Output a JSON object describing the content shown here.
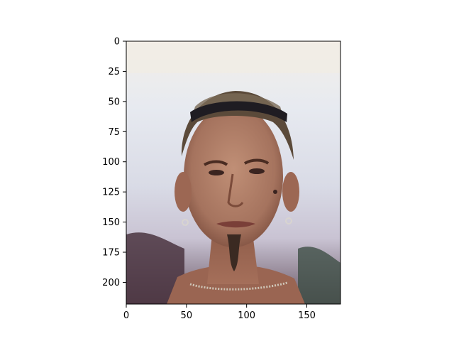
{
  "chart_data": {
    "type": "image",
    "x_axis": {
      "ticks": [
        0,
        50,
        100,
        150
      ],
      "lim": [
        0,
        178
      ]
    },
    "y_axis": {
      "ticks": [
        0,
        25,
        50,
        75,
        100,
        125,
        150,
        175,
        200
      ],
      "lim": [
        0,
        218
      ],
      "inverted": true
    },
    "grid": false,
    "image": {
      "description_icon": "portrait-photo",
      "colors": {
        "sky": "#e3e8f0",
        "sky_warm": "#f3e6e3",
        "hair": "#5b4a3a",
        "skin": "#b4826b",
        "skin_shadow": "#8a5a48",
        "background_dark": "#3a2f38"
      }
    }
  }
}
